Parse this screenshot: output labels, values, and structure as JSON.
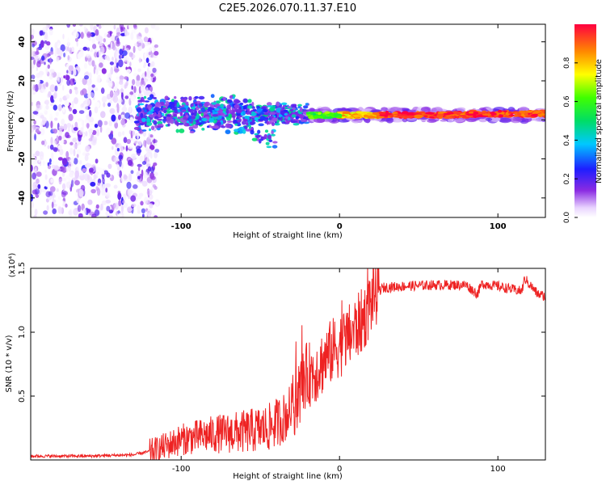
{
  "figure": {
    "title": "C2E5.2026.070.11.37.E10"
  },
  "chart_data": [
    {
      "type": "heatmap",
      "title": "",
      "xlabel": "Height of straight line (km)",
      "ylabel": "Frequency (Hz)",
      "xlim": [
        -195,
        130
      ],
      "ylim": [
        -50,
        49
      ],
      "xticks": [
        -100,
        0,
        100
      ],
      "yticks": [
        -40,
        -20,
        0,
        20,
        40
      ],
      "colorbar": {
        "label": "Normalized spectral amplitude",
        "range": [
          0.0,
          1.0
        ],
        "ticks": [
          0.0,
          0.2,
          0.4,
          0.6,
          0.8
        ]
      },
      "regions": [
        {
          "name": "noise",
          "x_range": [
            -195,
            -115
          ],
          "freq_range": [
            -50,
            49
          ],
          "amplitude": 0.05
        },
        {
          "name": "scattered signal",
          "x_range": [
            -128,
            -20
          ],
          "freq_range": [
            -15,
            12
          ],
          "amplitude": 0.2
        },
        {
          "name": "coherent band",
          "x_range": [
            -20,
            130
          ],
          "freq_center": 2.5,
          "freq_halfwidth": 2.5,
          "amplitude": 0.95
        }
      ]
    },
    {
      "type": "line",
      "title": "",
      "xlabel": "Height of straight line (km)",
      "ylabel": "SNR (10 * v/v)",
      "yscale_label": "(x10⁴)",
      "xlim": [
        -195,
        130
      ],
      "ylim": [
        0,
        1.5
      ],
      "xticks": [
        -100,
        0,
        100
      ],
      "yticks": [
        0.5,
        1.0,
        1.5
      ],
      "color": "#ee2222",
      "series": [
        {
          "name": "SNR",
          "x": [
            -195,
            -160,
            -130,
            -115,
            -100,
            -80,
            -60,
            -45,
            -35,
            -27,
            -22,
            -15,
            -5,
            5,
            15,
            22,
            28,
            40,
            60,
            80,
            87,
            90,
            100,
            115,
            117,
            125,
            130
          ],
          "y": [
            0.03,
            0.03,
            0.04,
            0.08,
            0.16,
            0.2,
            0.22,
            0.25,
            0.33,
            0.45,
            0.65,
            0.7,
            0.85,
            0.95,
            1.1,
            1.3,
            1.35,
            1.36,
            1.37,
            1.37,
            1.3,
            1.38,
            1.36,
            1.32,
            1.42,
            1.3,
            1.28
          ]
        }
      ]
    }
  ]
}
